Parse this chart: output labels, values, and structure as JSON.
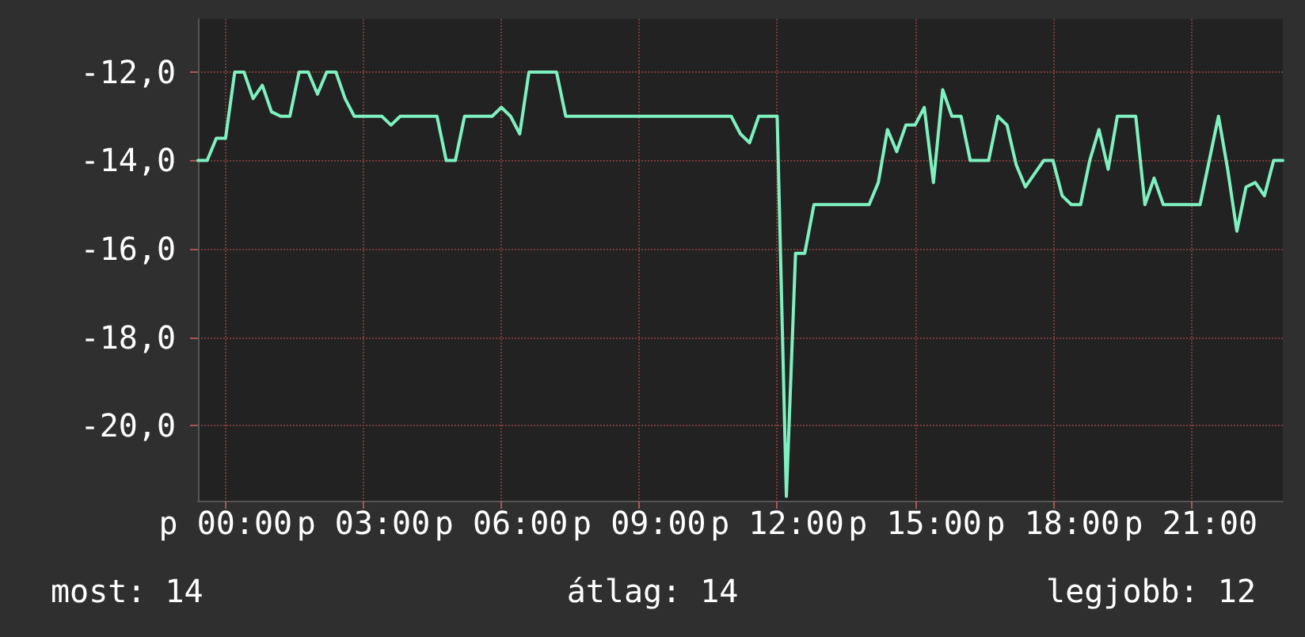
{
  "chart_data": {
    "type": "line",
    "categories": [
      null,
      null,
      null,
      "p 00:00",
      null,
      null,
      null,
      null,
      null,
      null,
      null,
      null,
      null,
      null,
      null,
      null,
      null,
      null,
      "p 03:00",
      null,
      null,
      null,
      null,
      null,
      null,
      null,
      null,
      null,
      null,
      null,
      null,
      null,
      null,
      "p 06:00",
      null,
      null,
      null,
      null,
      null,
      null,
      null,
      null,
      null,
      null,
      null,
      null,
      null,
      null,
      "p 09:00",
      null,
      null,
      null,
      null,
      null,
      null,
      null,
      null,
      null,
      null,
      null,
      null,
      null,
      null,
      "p 12:00",
      null,
      null,
      null,
      null,
      null,
      null,
      null,
      null,
      null,
      null,
      null,
      null,
      null,
      null,
      "p 15:00",
      null,
      null,
      null,
      null,
      null,
      null,
      null,
      null,
      null,
      null,
      null,
      null,
      null,
      null,
      "p 18:00",
      null,
      null,
      null,
      null,
      null,
      null,
      null,
      null,
      null,
      null,
      null,
      null,
      null,
      null,
      "p 21:00",
      null,
      null,
      null,
      null,
      null,
      null,
      null,
      null,
      null,
      null
    ],
    "series": [
      {
        "color": "#7ff0c0",
        "values": [
          -14,
          -14,
          -13.5,
          -13.5,
          -12,
          -12,
          -12.6,
          -12.3,
          -12.9,
          -13,
          -13,
          -12,
          -12,
          -12.5,
          -12,
          -12,
          -12.6,
          -13,
          -13,
          -13,
          -13,
          -13.2,
          -13,
          -13,
          -13,
          -13,
          -13,
          -14,
          -14,
          -13,
          -13,
          -13,
          -13,
          -12.8,
          -13,
          -13.4,
          -12,
          -12,
          -12,
          -12,
          -13,
          -13,
          -13,
          -13,
          -13,
          -13,
          -13,
          -13,
          -13,
          -13,
          -13,
          -13,
          -13,
          -13,
          -13,
          -13,
          -13,
          -13,
          -13,
          -13.4,
          -13.6,
          -13,
          -13,
          -13,
          -21.6,
          -16.1,
          -16.1,
          -15,
          -15,
          -15,
          -15,
          -15,
          -15,
          -15,
          -14.5,
          -13.3,
          -13.8,
          -13.2,
          -13.2,
          -12.8,
          -14.5,
          -12.4,
          -13,
          -13,
          -14,
          -14,
          -14,
          -13,
          -13.2,
          -14.1,
          -14.6,
          -14.3,
          -14,
          -14,
          -14.8,
          -15,
          -15,
          -14,
          -13.3,
          -14.2,
          -13,
          -13,
          -13,
          -15,
          -14.4,
          -15,
          -15,
          -15,
          -15,
          -15,
          -14,
          -13,
          -14.2,
          -15.6,
          -14.6,
          -14.5,
          -14.8,
          -14,
          -14
        ]
      }
    ],
    "ylim": [
      -21.7,
      -10.8
    ],
    "yticks": [
      {
        "value": -20,
        "label": "-20,0"
      },
      {
        "value": -18,
        "label": "-18,0"
      },
      {
        "value": -16,
        "label": "-16,0"
      },
      {
        "value": -14,
        "label": "-14,0"
      },
      {
        "value": -12,
        "label": "-12,0"
      }
    ],
    "grid": true,
    "marker": "none",
    "line_style": "solid",
    "annotations": [
      "most: 14",
      "átlag: 14",
      "legjobb: 12"
    ]
  }
}
